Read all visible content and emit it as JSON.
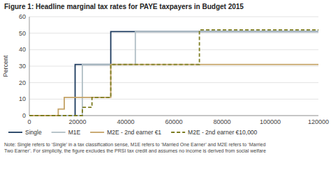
{
  "chart_data": {
    "type": "line",
    "title": "Figure 1: Headline marginal tax rates for PAYE taxpayers in Budget 2015",
    "y_label": "Percent",
    "xlim": [
      0,
      120000
    ],
    "ylim": [
      0,
      60
    ],
    "xticks": [
      0,
      20000,
      40000,
      60000,
      80000,
      100000,
      120000
    ],
    "yticks": [
      0,
      10,
      20,
      30,
      40,
      50,
      60
    ],
    "grid": true,
    "legend": "bottom",
    "annotations": [
      "Note: Single refers to ‘Single’ in a tax classification sense, M1E refers to ‘Married One Earner’ and M2E refers to ‘Married\nTwo Earner’. For simplicity, the figure excludes the PRSI tax credit and assumes no income is derived from social welfare"
    ],
    "series": [
      {
        "name": "Single",
        "color": "#1c3a5e",
        "line_style": "solid",
        "x": [
          0,
          19000,
          19000,
          33800,
          33800,
          120000
        ],
        "values": [
          0,
          0,
          31,
          31,
          51,
          51
        ]
      },
      {
        "name": "M1E",
        "color": "#b0bec5",
        "line_style": "solid",
        "x": [
          0,
          22000,
          22000,
          44000,
          44000,
          120000
        ],
        "values": [
          0,
          0,
          31,
          31,
          51,
          51
        ]
      },
      {
        "name": "M2E - 2nd earner €1",
        "color": "#c4a265",
        "line_style": "solid",
        "x": [
          0,
          12000,
          12000,
          14500,
          14500,
          23800,
          23800,
          33800,
          33800,
          120000
        ],
        "values": [
          0,
          0,
          4,
          4,
          11,
          11,
          11,
          11,
          31,
          31
        ]
      },
      {
        "name": "M2E - 2nd earner €10,000",
        "color": "#7c7c20",
        "line_style": "dashed",
        "x": [
          0,
          22000,
          22000,
          26000,
          26000,
          33800,
          33800,
          70600,
          70600,
          120000
        ],
        "values": [
          0,
          0,
          5,
          5,
          11,
          11,
          31,
          31,
          52,
          52
        ]
      }
    ]
  }
}
